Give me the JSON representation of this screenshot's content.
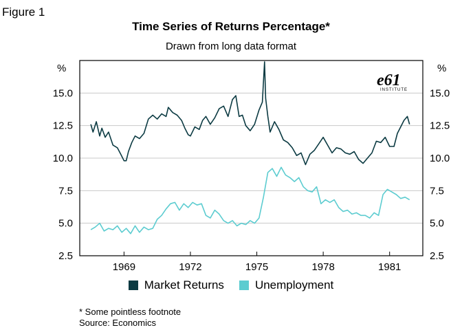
{
  "figure_label": "Figure 1",
  "logo": {
    "mark": "e61",
    "text": "INSTITUTE",
    "color": "#000000"
  },
  "footnote": "* Some pointless footnote",
  "source": "Source: Economics",
  "colors": {
    "market": "#0B3A42",
    "unemployment": "#5CCCD0",
    "grid": "#C8C8C8"
  },
  "chart_data": {
    "type": "line",
    "title": "Time Series of Returns Percentage*",
    "subtitle": "Drawn from long data format",
    "y_unit_left": "%",
    "y_unit_right": "%",
    "ylim": [
      2.5,
      17.5
    ],
    "yticks": [
      2.5,
      5.0,
      7.5,
      10.0,
      12.5,
      15.0
    ],
    "ytick_labels": [
      "2.5",
      "5.0",
      "7.5",
      "10.0",
      "12.5",
      "15.0"
    ],
    "xlim": [
      1967.0,
      1982.5
    ],
    "xticks": [
      1969,
      1972,
      1975,
      1978,
      1981
    ],
    "xtick_labels": [
      "1969",
      "1972",
      "1975",
      "1978",
      "1981"
    ],
    "grid": true,
    "legend_position": "bottom",
    "series": [
      {
        "name": "Market Returns",
        "color": "#0B3A42",
        "x": [
          1967.5,
          1967.6,
          1967.75,
          1967.9,
          1968.0,
          1968.15,
          1968.3,
          1968.5,
          1968.7,
          1968.85,
          1969.0,
          1969.1,
          1969.2,
          1969.35,
          1969.5,
          1969.7,
          1969.9,
          1970.1,
          1970.3,
          1970.5,
          1970.7,
          1970.9,
          1971.0,
          1971.2,
          1971.4,
          1971.6,
          1971.75,
          1971.9,
          1972.0,
          1972.2,
          1972.4,
          1972.55,
          1972.7,
          1972.9,
          1973.1,
          1973.3,
          1973.5,
          1973.7,
          1973.9,
          1974.05,
          1974.2,
          1974.35,
          1974.5,
          1974.7,
          1974.9,
          1975.1,
          1975.25,
          1975.35,
          1975.4,
          1975.5,
          1975.6,
          1975.8,
          1976.0,
          1976.2,
          1976.4,
          1976.6,
          1976.8,
          1977.0,
          1977.2,
          1977.4,
          1977.6,
          1977.8,
          1978.0,
          1978.2,
          1978.4,
          1978.6,
          1978.8,
          1979.0,
          1979.2,
          1979.4,
          1979.6,
          1979.8,
          1980.0,
          1980.2,
          1980.4,
          1980.6,
          1980.8,
          1981.0,
          1981.2,
          1981.35,
          1981.5,
          1981.65,
          1981.8,
          1981.9
        ],
        "values": [
          12.6,
          12.0,
          12.8,
          11.7,
          12.3,
          11.6,
          12.0,
          11.0,
          10.8,
          10.3,
          9.8,
          9.8,
          10.5,
          11.2,
          11.7,
          11.5,
          11.9,
          13.0,
          13.3,
          13.0,
          13.4,
          13.2,
          13.9,
          13.5,
          13.3,
          12.9,
          12.3,
          11.8,
          11.7,
          12.4,
          12.2,
          12.9,
          13.2,
          12.6,
          13.1,
          13.8,
          14.0,
          13.2,
          14.5,
          14.8,
          13.2,
          13.3,
          12.5,
          12.1,
          12.6,
          13.7,
          14.3,
          17.4,
          14.6,
          13.2,
          12.0,
          12.8,
          12.2,
          11.4,
          11.2,
          10.8,
          10.2,
          10.4,
          9.5,
          10.3,
          10.6,
          11.1,
          11.6,
          11.0,
          10.4,
          10.8,
          10.7,
          10.4,
          10.3,
          10.5,
          9.9,
          9.6,
          10.0,
          10.4,
          11.3,
          11.2,
          11.6,
          10.9,
          10.9,
          11.9,
          12.4,
          12.9,
          13.2,
          12.6
        ]
      },
      {
        "name": "Unemployment",
        "color": "#5CCCD0",
        "x": [
          1967.5,
          1967.7,
          1967.9,
          1968.1,
          1968.3,
          1968.5,
          1968.7,
          1968.9,
          1969.1,
          1969.3,
          1969.5,
          1969.7,
          1969.9,
          1970.1,
          1970.3,
          1970.5,
          1970.7,
          1970.9,
          1971.1,
          1971.3,
          1971.5,
          1971.7,
          1971.9,
          1972.1,
          1972.3,
          1972.5,
          1972.7,
          1972.9,
          1973.1,
          1973.3,
          1973.5,
          1973.7,
          1973.9,
          1974.1,
          1974.3,
          1974.5,
          1974.7,
          1974.9,
          1975.1,
          1975.3,
          1975.5,
          1975.7,
          1975.9,
          1976.1,
          1976.3,
          1976.5,
          1976.7,
          1976.9,
          1977.1,
          1977.3,
          1977.5,
          1977.7,
          1977.9,
          1978.1,
          1978.3,
          1978.5,
          1978.7,
          1978.9,
          1979.1,
          1979.3,
          1979.5,
          1979.7,
          1979.9,
          1980.1,
          1980.3,
          1980.5,
          1980.7,
          1980.9,
          1981.1,
          1981.3,
          1981.5,
          1981.7,
          1981.9
        ],
        "values": [
          4.5,
          4.7,
          5.0,
          4.4,
          4.6,
          4.5,
          4.8,
          4.3,
          4.6,
          4.2,
          4.8,
          4.3,
          4.7,
          4.5,
          4.6,
          5.3,
          5.6,
          6.1,
          6.5,
          6.6,
          6.0,
          6.5,
          6.2,
          6.6,
          6.4,
          6.5,
          5.6,
          5.4,
          6.0,
          5.7,
          5.2,
          5.0,
          5.2,
          4.8,
          5.0,
          4.9,
          5.2,
          5.0,
          5.4,
          7.0,
          8.9,
          9.2,
          8.6,
          9.3,
          8.7,
          8.5,
          8.2,
          8.5,
          7.8,
          7.5,
          7.4,
          7.8,
          6.5,
          6.8,
          6.6,
          6.8,
          6.2,
          5.9,
          6.0,
          5.7,
          5.8,
          5.6,
          5.6,
          5.4,
          5.8,
          5.6,
          7.2,
          7.6,
          7.4,
          7.2,
          6.9,
          7.0,
          6.8
        ]
      }
    ]
  }
}
